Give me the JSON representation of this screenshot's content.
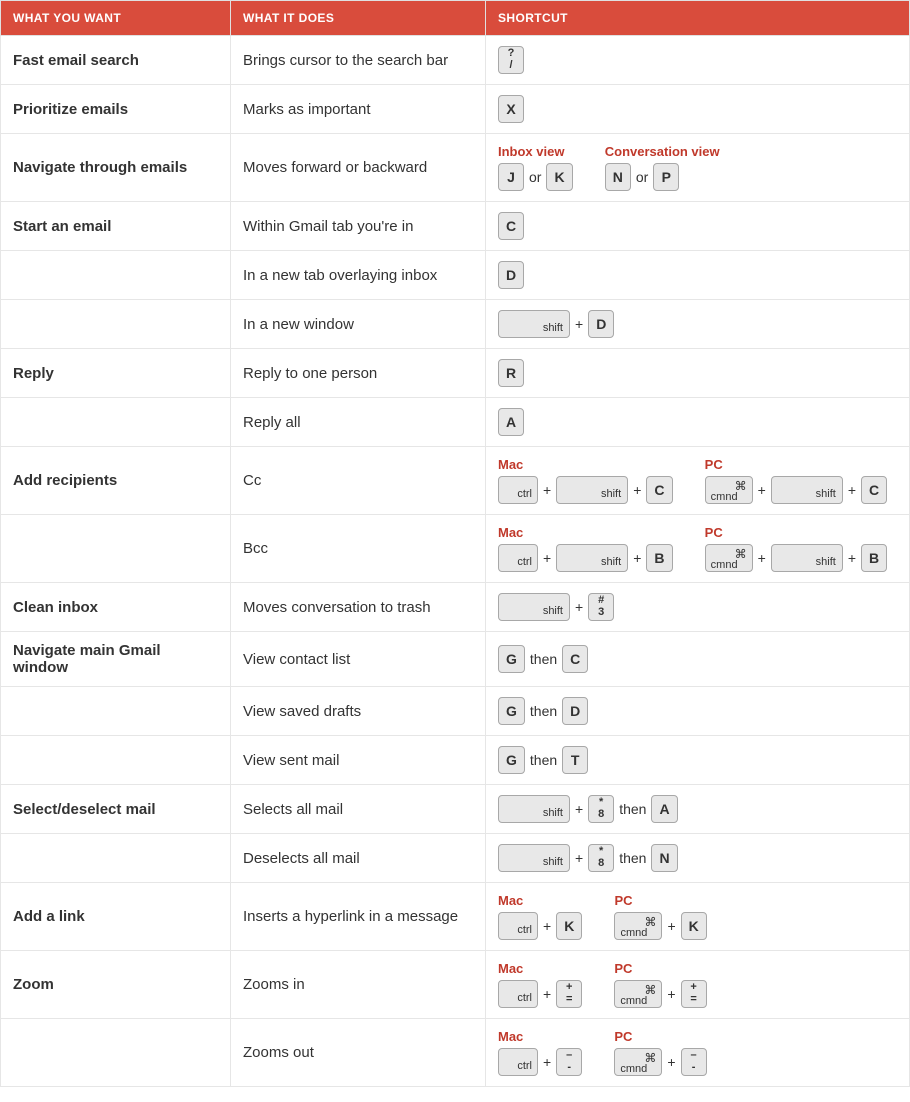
{
  "colors": {
    "header_bg": "#d94c3c",
    "header_text": "#ffffff",
    "border": "#e6e6e6",
    "text": "#333333",
    "label": "#c0392b",
    "key_bg": "#e8e8e8",
    "key_border": "#a8a8a8"
  },
  "headers": {
    "want": "WHAT YOU WANT",
    "does": "WHAT IT DOES",
    "shortcut": "SHORTCUT"
  },
  "labels": {
    "inbox_view": "Inbox view",
    "conversation_view": "Conversation view",
    "mac": "Mac",
    "pc": "PC",
    "or": "or",
    "plus": "+",
    "then": "then"
  },
  "keys": {
    "shift": "shift",
    "ctrl": "ctrl",
    "cmnd": "cmnd",
    "cmnd_symbol": "⌘"
  },
  "rows": {
    "r1": {
      "want": "Fast email search",
      "does": "Brings cursor to the search bar",
      "key_top": "?",
      "key_bot": "/"
    },
    "r2": {
      "want": "Prioritize emails",
      "does": "Marks as important",
      "key": "X"
    },
    "r3": {
      "want": "Navigate through emails",
      "does": "Moves forward or backward",
      "inbox_a": "J",
      "inbox_b": "K",
      "conv_a": "N",
      "conv_b": "P"
    },
    "r4": {
      "want": "Start an email",
      "does": "Within Gmail tab you're in",
      "key": "C"
    },
    "r5": {
      "want": "",
      "does": "In a new tab overlaying inbox",
      "key": "D"
    },
    "r6": {
      "want": "",
      "does": "In a new window",
      "key": "D"
    },
    "r7": {
      "want": "Reply",
      "does": "Reply to one person",
      "key": "R"
    },
    "r8": {
      "want": "",
      "does": "Reply all",
      "key": "A"
    },
    "r9": {
      "want": "Add recipients",
      "does": "Cc",
      "key": "C"
    },
    "r10": {
      "want": "",
      "does": "Bcc",
      "key": "B"
    },
    "r11": {
      "want": "Clean inbox",
      "does": "Moves conversation to trash",
      "key_top": "#",
      "key_bot": "3"
    },
    "r12": {
      "want": "Navigate main Gmail window",
      "does": "View contact list",
      "key_a": "G",
      "key_b": "C"
    },
    "r13": {
      "want": "",
      "does": "View saved drafts",
      "key_a": "G",
      "key_b": "D"
    },
    "r14": {
      "want": "",
      "does": "View sent mail",
      "key_a": "G",
      "key_b": "T"
    },
    "r15": {
      "want": "Select/deselect mail",
      "does": "Selects all mail",
      "key_top": "*",
      "key_bot": "8",
      "key_then": "A"
    },
    "r16": {
      "want": "",
      "does": "Deselects all mail",
      "key_top": "*",
      "key_bot": "8",
      "key_then": "N"
    },
    "r17": {
      "want": "Add a link",
      "does": "Inserts a hyperlink in a message",
      "key": "K"
    },
    "r18": {
      "want": "Zoom",
      "does": "Zooms in",
      "key_top": "+",
      "key_bot": "="
    },
    "r19": {
      "want": "",
      "does": "Zooms out",
      "key_top": "–",
      "key_bot": "-"
    }
  }
}
